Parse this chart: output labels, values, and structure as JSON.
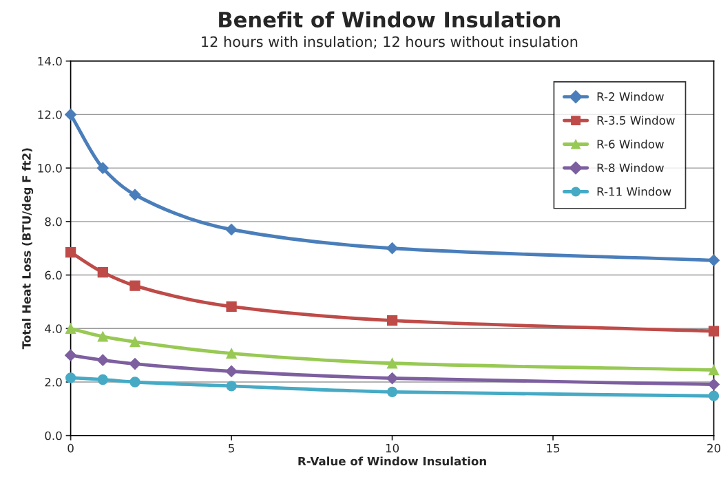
{
  "chart_data": {
    "type": "line",
    "title": "Benefit of Window Insulation",
    "subtitle": "12 hours with insulation; 12 hours without insulation",
    "xlabel": "R-Value of Window Insulation",
    "ylabel": "Total Heat Loss (BTU/deg F ft2)",
    "x": [
      0,
      1,
      2,
      5,
      10,
      20
    ],
    "series": [
      {
        "name": "R-2 Window",
        "color": "#4a7ebb",
        "marker": "diamond",
        "values": [
          12.0,
          10.0,
          9.0,
          7.7,
          7.0,
          6.55
        ]
      },
      {
        "name": "R-3.5 Window",
        "color": "#be4b48",
        "marker": "square",
        "values": [
          6.85,
          6.1,
          5.6,
          4.82,
          4.3,
          3.9
        ]
      },
      {
        "name": "R-6 Window",
        "color": "#98c954",
        "marker": "triangle",
        "values": [
          4.0,
          3.7,
          3.5,
          3.07,
          2.7,
          2.45
        ]
      },
      {
        "name": "R-8 Window",
        "color": "#7d5fa0",
        "marker": "diamond",
        "values": [
          3.0,
          2.82,
          2.68,
          2.4,
          2.14,
          1.91
        ]
      },
      {
        "name": "R-11 Window",
        "color": "#46aac5",
        "marker": "circle",
        "values": [
          2.16,
          2.09,
          2.0,
          1.85,
          1.63,
          1.48
        ]
      }
    ],
    "xlim": [
      0,
      20
    ],
    "xticks": [
      0,
      5,
      10,
      15,
      20
    ],
    "ylim": [
      0,
      14
    ],
    "yticks": [
      {
        "value": 0,
        "label": "0.0"
      },
      {
        "value": 2,
        "label": "2.0"
      },
      {
        "value": 4,
        "label": "4.0"
      },
      {
        "value": 6,
        "label": "6.0"
      },
      {
        "value": 8,
        "label": "8.0"
      },
      {
        "value": 10,
        "label": "10.0"
      },
      {
        "value": 12,
        "label": "12.0"
      },
      {
        "value": 14,
        "label": "14.0"
      }
    ],
    "grid": "y",
    "legend": "top right",
    "line_style": "solid"
  }
}
